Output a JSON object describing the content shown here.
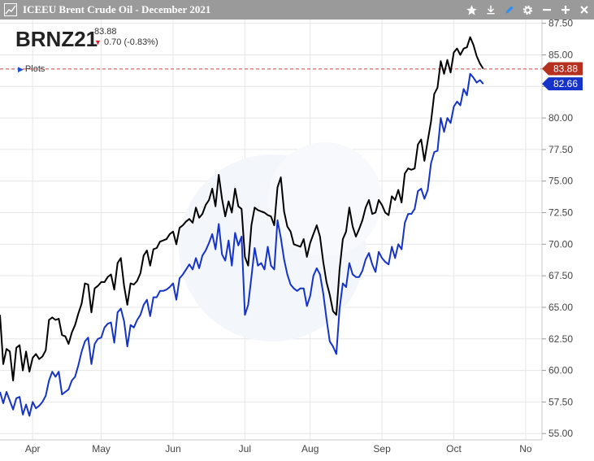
{
  "window": {
    "title": "ICEEU Brent Crude Oil - December 2021"
  },
  "header": {
    "symbol": "BRNZ21",
    "last": "83.88",
    "change": "0.70 (-0.83%)"
  },
  "plots_label": "Plots",
  "icons": [
    "chart-icon",
    "star-icon",
    "download-icon",
    "pencil-icon",
    "gear-icon",
    "minimize-icon",
    "plus-icon",
    "close-icon"
  ],
  "colors": {
    "black_series": "#000000",
    "blue_series": "#1533c8",
    "last_tag": "#b5301e",
    "blue_tag": "#1533c8",
    "down": "#d8202a"
  },
  "chart_data": {
    "type": "line",
    "title": "ICEEU Brent Crude Oil - December 2021",
    "x_labels": [
      "Apr",
      "May",
      "Jun",
      "Jul",
      "Aug",
      "Sep",
      "Oct",
      "No"
    ],
    "y_ticks": [
      "87.50",
      "85.00",
      "82.50",
      "80.00",
      "77.50",
      "75.00",
      "72.50",
      "70.00",
      "67.50",
      "65.00",
      "62.50",
      "60.00",
      "57.50",
      "55.00"
    ],
    "ylim": [
      54.5,
      87.8
    ],
    "xlim": [
      0,
      166
    ],
    "grid": true,
    "month_starts": [
      10,
      31,
      53,
      75,
      95,
      117,
      139,
      161
    ],
    "reference_line": 83.88,
    "price_tags": [
      "83.88",
      "82.66"
    ],
    "series": [
      {
        "values": [
          64.4,
          60.5,
          61.7,
          61.5,
          59.2,
          61.8,
          62.0,
          60.0,
          61.5,
          59.9,
          61.0,
          61.3,
          60.9,
          61.1,
          61.6,
          64.0,
          64.2,
          64.0,
          64.1,
          62.8,
          62.7,
          62.1,
          63.0,
          63.6,
          64.5,
          65.3,
          66.9,
          66.8,
          64.6,
          66.5,
          66.7,
          67.0,
          67.0,
          67.4,
          67.6,
          66.4,
          68.5,
          68.9,
          66.7,
          65.2,
          66.9,
          66.8,
          67.1,
          67.7,
          69.1,
          69.5,
          68.3,
          69.6,
          69.7,
          70.2,
          70.3,
          70.4,
          70.8,
          71.0,
          70.0,
          71.3,
          71.5,
          71.8,
          72.0,
          71.7,
          72.9,
          72.1,
          72.4,
          73.1,
          73.5,
          74.4,
          73.0,
          75.5,
          73.6,
          72.2,
          73.4,
          72.5,
          74.4,
          73.0,
          72.8,
          69.0,
          68.3,
          71.5,
          72.9,
          72.7,
          72.6,
          72.5,
          72.3,
          72.2,
          71.5,
          74.5,
          75.3,
          72.6,
          71.4,
          71.0,
          70.0,
          69.9,
          69.8,
          70.4,
          69.0,
          70.1,
          70.8,
          71.5,
          70.6,
          68.6,
          67.0,
          66.0,
          64.7,
          64.4,
          68.0,
          70.4,
          71.0,
          72.9,
          71.4,
          70.6,
          71.2,
          71.9,
          72.9,
          73.5,
          72.4,
          72.5,
          73.5,
          73.1,
          72.5,
          72.3,
          73.8,
          73.5,
          74.3,
          73.3,
          75.6,
          76.0,
          75.9,
          76.0,
          77.9,
          78.3,
          76.6,
          78.2,
          79.7,
          81.9,
          82.4,
          84.5,
          83.5,
          84.6,
          83.6,
          85.2,
          85.5,
          85.0,
          85.5,
          85.6,
          86.4,
          85.8,
          84.9,
          84.3,
          83.9
        ],
        "color": "#000000"
      },
      {
        "values": [
          58.3,
          57.4,
          58.3,
          57.6,
          56.9,
          57.8,
          57.9,
          56.5,
          57.3,
          56.4,
          57.5,
          57.0,
          57.2,
          57.5,
          58.0,
          59.2,
          59.9,
          59.5,
          59.9,
          58.1,
          58.3,
          58.5,
          59.2,
          59.5,
          60.4,
          61.5,
          62.3,
          62.6,
          60.5,
          62.1,
          62.5,
          62.6,
          63.4,
          63.7,
          63.8,
          62.2,
          64.6,
          64.9,
          63.9,
          61.9,
          63.6,
          63.4,
          64.0,
          64.4,
          65.2,
          65.6,
          64.3,
          65.8,
          65.8,
          66.3,
          66.3,
          66.4,
          66.6,
          66.9,
          65.6,
          67.3,
          67.6,
          68.0,
          68.4,
          68.0,
          68.9,
          68.1,
          69.1,
          69.5,
          70.1,
          70.8,
          69.6,
          71.6,
          69.2,
          68.7,
          70.3,
          68.3,
          70.9,
          69.9,
          70.6,
          64.4,
          65.2,
          67.4,
          69.7,
          68.3,
          68.5,
          68.0,
          69.8,
          68.3,
          68.0,
          71.9,
          70.5,
          68.8,
          67.6,
          66.8,
          66.5,
          66.3,
          66.5,
          66.5,
          65.1,
          65.9,
          67.5,
          68.1,
          67.6,
          66.1,
          64.1,
          62.3,
          61.9,
          61.3,
          64.9,
          66.9,
          66.6,
          68.5,
          67.6,
          67.4,
          67.4,
          67.9,
          68.8,
          69.3,
          68.4,
          67.8,
          69.4,
          68.9,
          68.6,
          68.4,
          69.8,
          68.9,
          70.0,
          69.6,
          71.7,
          72.4,
          72.4,
          72.8,
          74.2,
          74.4,
          73.6,
          74.3,
          76.4,
          77.3,
          77.4,
          80.0,
          78.9,
          80.0,
          79.6,
          80.9,
          81.3,
          81.0,
          82.3,
          81.8,
          83.5,
          83.2,
          82.8,
          83.0,
          82.7
        ],
        "color": "#1533c8"
      }
    ]
  }
}
